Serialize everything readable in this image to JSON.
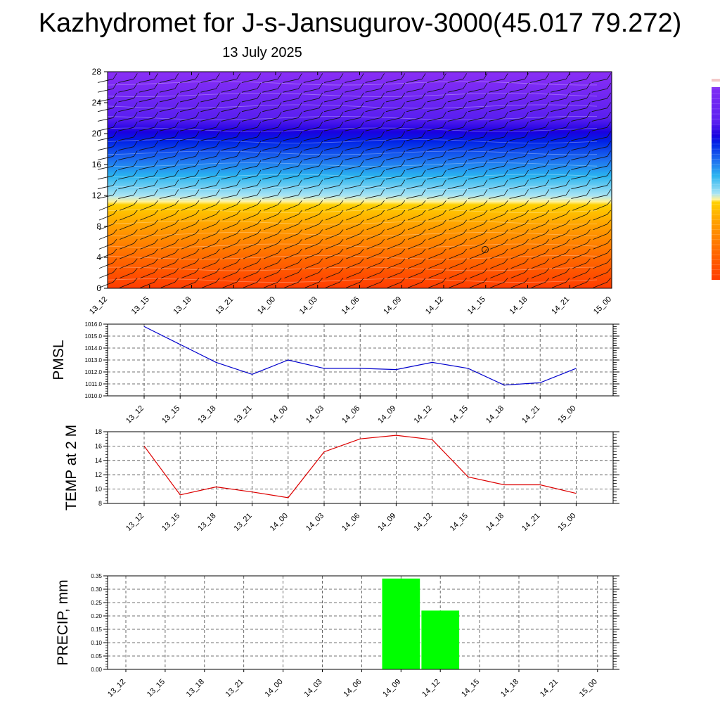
{
  "title": "Kazhydromet for J-s-Jansugurov-3000(45.017 79.272)",
  "date": "13 July 2025",
  "time_labels": [
    "13_12",
    "13_15",
    "13_18",
    "13_21",
    "14_00",
    "14_03",
    "14_06",
    "14_09",
    "14_12",
    "14_15",
    "14_18",
    "14_21",
    "15_00"
  ],
  "chart_data": [
    {
      "type": "heatmap",
      "name": "vertical-cross-section",
      "x": [
        "13_12",
        "13_15",
        "13_18",
        "13_21",
        "14_00",
        "14_03",
        "14_06",
        "14_09",
        "14_12",
        "14_15",
        "14_18",
        "14_21",
        "15_00"
      ],
      "ylim": [
        0,
        28
      ],
      "yticks": [
        0,
        4,
        8,
        12,
        16,
        20,
        24,
        28
      ],
      "color_stops": [
        {
          "y": 0,
          "color": "#ff3c00"
        },
        {
          "y": 4,
          "color": "#ff6a00"
        },
        {
          "y": 8,
          "color": "#ff9f00"
        },
        {
          "y": 10.8,
          "color": "#ffd000"
        },
        {
          "y": 11.2,
          "color": "#fff29a"
        },
        {
          "y": 12,
          "color": "#a8e4f4"
        },
        {
          "y": 14.5,
          "color": "#2ab4f0"
        },
        {
          "y": 16.5,
          "color": "#1e73f0"
        },
        {
          "y": 19,
          "color": "#0022e6"
        },
        {
          "y": 20.2,
          "color": "#1a00e0"
        },
        {
          "y": 22,
          "color": "#5a1ff0"
        },
        {
          "y": 28,
          "color": "#8a2ff5"
        }
      ],
      "grid": false
    },
    {
      "type": "line",
      "ylabel": "PMSL",
      "categories": [
        "13_12",
        "13_15",
        "13_18",
        "13_21",
        "14_00",
        "14_03",
        "14_06",
        "14_09",
        "14_12",
        "14_15",
        "14_18",
        "14_21",
        "15_00"
      ],
      "values": [
        1015.8,
        1014.3,
        1012.8,
        1011.8,
        1013.0,
        1012.3,
        1012.3,
        1012.2,
        1012.8,
        1012.3,
        1010.9,
        1011.1,
        1012.3
      ],
      "ylim": [
        1010.0,
        1016.0
      ],
      "yticks": [
        "1010.0",
        "1011.0",
        "1012.0",
        "1013.0",
        "1014.0",
        "1015.0",
        "1016.0"
      ],
      "color": "#0000cc",
      "grid": true
    },
    {
      "type": "line",
      "ylabel": "TEMP at 2 M",
      "categories": [
        "13_12",
        "13_15",
        "13_18",
        "13_21",
        "14_00",
        "14_03",
        "14_06",
        "14_09",
        "14_12",
        "14_15",
        "14_18",
        "14_21",
        "15_00"
      ],
      "values": [
        16.0,
        9.2,
        10.3,
        9.6,
        8.8,
        15.2,
        17.0,
        17.5,
        16.9,
        11.7,
        10.6,
        10.6,
        9.4
      ],
      "ylim": [
        8,
        18
      ],
      "yticks": [
        "8",
        "10",
        "12",
        "14",
        "16",
        "18"
      ],
      "color": "#dd0000",
      "grid": true
    },
    {
      "type": "bar",
      "ylabel": "PRECIP, mm",
      "categories": [
        "13_12",
        "13_15",
        "13_18",
        "13_21",
        "14_00",
        "14_03",
        "14_06",
        "14_09",
        "14_12",
        "14_15",
        "14_18",
        "14_21",
        "15_00"
      ],
      "values": [
        0,
        0,
        0,
        0,
        0,
        0,
        0,
        0.34,
        0.22,
        0,
        0,
        0,
        0
      ],
      "ylim": [
        0,
        0.35
      ],
      "yticks": [
        "0.00",
        "0.05",
        "0.10",
        "0.15",
        "0.20",
        "0.25",
        "0.30",
        "0.35"
      ],
      "color": "#00ff00",
      "grid": true
    }
  ]
}
